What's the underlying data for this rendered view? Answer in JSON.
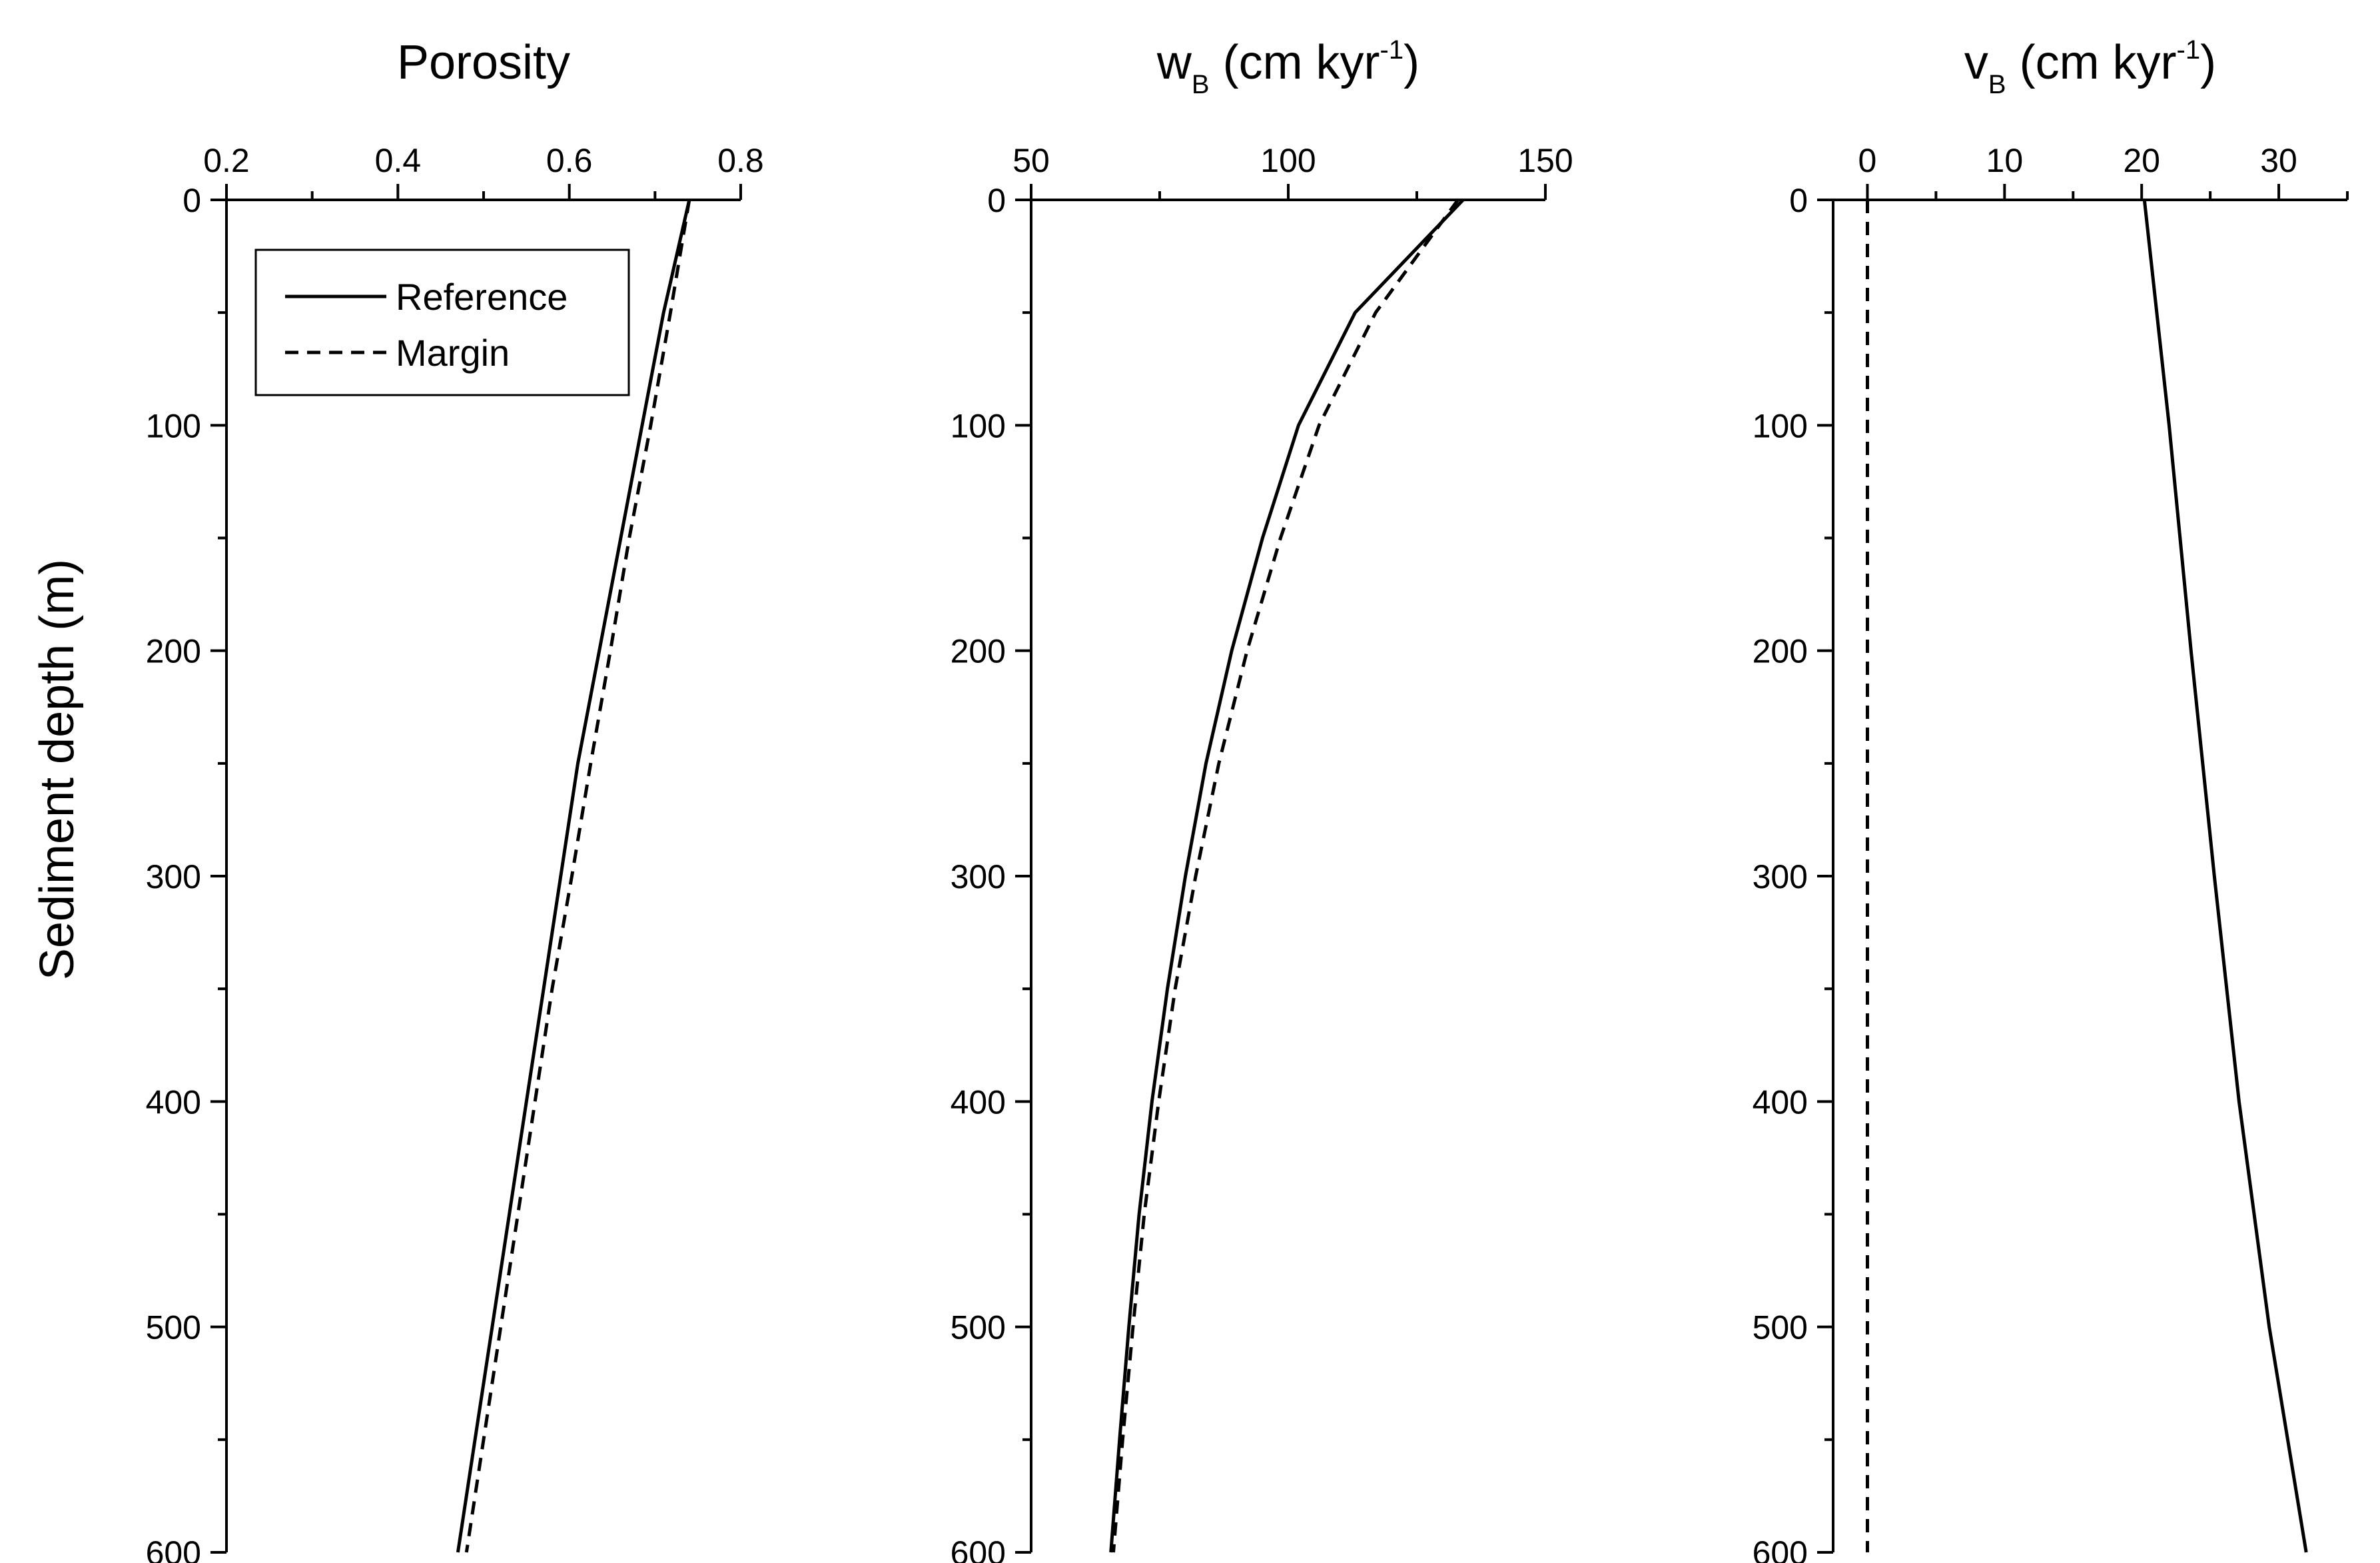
{
  "y_axis_label": "Sediment depth (m)",
  "legend": [
    {
      "label": "Reference",
      "style": "solid"
    },
    {
      "label": "Margin",
      "style": "dashed"
    }
  ],
  "chart_data": [
    {
      "type": "line",
      "title": {
        "main": "Porosity",
        "sub": "",
        "sup": "",
        "tail": ""
      },
      "xlim": [
        0.2,
        0.8
      ],
      "xticks": [
        0.2,
        0.4,
        0.6,
        0.8
      ],
      "xtick_labels": [
        "0.2",
        "0.4",
        "0.6",
        "0.8"
      ],
      "ylim": [
        0,
        600
      ],
      "yticks": [
        0,
        100,
        200,
        300,
        400,
        500,
        600
      ],
      "ytick_labels": [
        "0",
        "100",
        "200",
        "300",
        "400",
        "500",
        "600"
      ],
      "x_axis_position": "top",
      "y_inverted": true,
      "grid": false,
      "legend_position": "top-left",
      "series": [
        {
          "name": "Reference",
          "style": "solid",
          "points": [
            [
              0.74,
              0
            ],
            [
              0.71,
              50
            ],
            [
              0.685,
              100
            ],
            [
              0.66,
              150
            ],
            [
              0.635,
              200
            ],
            [
              0.61,
              250
            ],
            [
              0.59,
              300
            ],
            [
              0.57,
              350
            ],
            [
              0.55,
              400
            ],
            [
              0.53,
              450
            ],
            [
              0.51,
              500
            ],
            [
              0.49,
              550
            ],
            [
              0.47,
              600
            ]
          ]
        },
        {
          "name": "Margin",
          "style": "dashed",
          "points": [
            [
              0.74,
              0
            ],
            [
              0.718,
              50
            ],
            [
              0.695,
              100
            ],
            [
              0.67,
              150
            ],
            [
              0.648,
              200
            ],
            [
              0.625,
              250
            ],
            [
              0.603,
              300
            ],
            [
              0.58,
              350
            ],
            [
              0.56,
              400
            ],
            [
              0.54,
              450
            ],
            [
              0.52,
              500
            ],
            [
              0.5,
              550
            ],
            [
              0.48,
              600
            ]
          ]
        }
      ]
    },
    {
      "type": "line",
      "title": {
        "main": "w",
        "sub": "B",
        "sup": "-1",
        "tail": ")",
        "mid": " (cm kyr"
      },
      "xlim": [
        50,
        150
      ],
      "xticks": [
        50,
        100,
        150
      ],
      "xtick_labels": [
        "50",
        "100",
        "150"
      ],
      "ylim": [
        0,
        600
      ],
      "yticks": [
        0,
        100,
        200,
        300,
        400,
        500,
        600
      ],
      "ytick_labels": [
        "0",
        "100",
        "200",
        "300",
        "400",
        "500",
        "600"
      ],
      "x_axis_position": "top",
      "y_inverted": true,
      "grid": false,
      "series": [
        {
          "name": "Reference",
          "style": "solid",
          "points": [
            [
              134,
              0
            ],
            [
              113,
              50
            ],
            [
              102,
              100
            ],
            [
              95,
              150
            ],
            [
              89,
              200
            ],
            [
              84,
              250
            ],
            [
              80,
              300
            ],
            [
              76.5,
              350
            ],
            [
              73.5,
              400
            ],
            [
              71,
              450
            ],
            [
              69,
              500
            ],
            [
              67.2,
              550
            ],
            [
              65.5,
              600
            ]
          ]
        },
        {
          "name": "Margin",
          "style": "dashed",
          "points": [
            [
              133,
              0
            ],
            [
              117,
              50
            ],
            [
              106,
              100
            ],
            [
              98.5,
              150
            ],
            [
              92,
              200
            ],
            [
              86.5,
              250
            ],
            [
              82,
              300
            ],
            [
              78,
              350
            ],
            [
              74.8,
              400
            ],
            [
              72,
              450
            ],
            [
              69.8,
              500
            ],
            [
              67.8,
              550
            ],
            [
              66,
              600
            ]
          ]
        }
      ]
    },
    {
      "type": "line",
      "title": {
        "main": "v",
        "sub": "B",
        "sup": "-1",
        "tail": ")",
        "mid": " (cm kyr"
      },
      "xlim": [
        -2.5,
        35
      ],
      "xticks": [
        0,
        10,
        20,
        30
      ],
      "xtick_labels": [
        "0",
        "10",
        "20",
        "30"
      ],
      "ylim": [
        0,
        600
      ],
      "yticks": [
        0,
        100,
        200,
        300,
        400,
        500,
        600
      ],
      "ytick_labels": [
        "0",
        "100",
        "200",
        "300",
        "400",
        "500",
        "600"
      ],
      "x_axis_position": "top",
      "y_inverted": true,
      "grid": false,
      "series": [
        {
          "name": "Reference",
          "style": "solid",
          "points": [
            [
              20.2,
              0
            ],
            [
              22,
              100
            ],
            [
              23.6,
              200
            ],
            [
              25.3,
              300
            ],
            [
              27.1,
              400
            ],
            [
              29.3,
              500
            ],
            [
              32,
              600
            ]
          ]
        },
        {
          "name": "Margin",
          "style": "dashed",
          "points": [
            [
              0,
              0
            ],
            [
              0,
              600
            ]
          ]
        }
      ]
    }
  ]
}
